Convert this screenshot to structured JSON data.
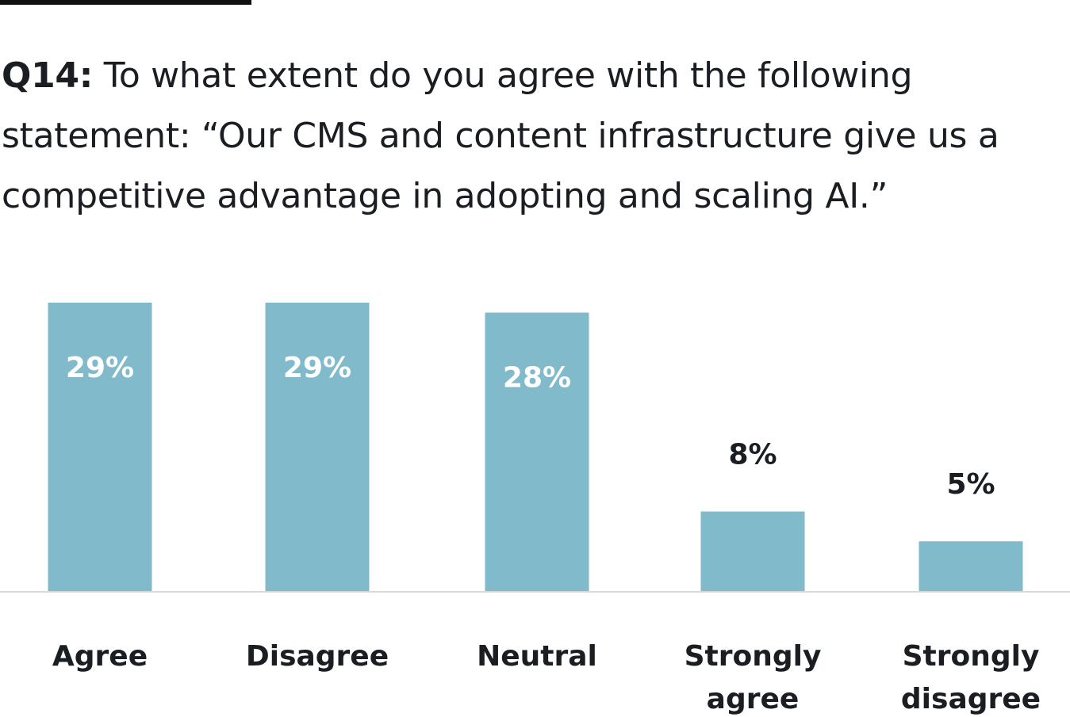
{
  "header": {
    "question_number": "Q14:",
    "question_text": " To what extent do you agree with the following statement: “Our CMS and content infrastructure give us a competitive advantage in adopting and scaling AI.”"
  },
  "colors": {
    "bar": "#81bbcb",
    "inside_label": "#ffffff",
    "outside_label": "#1a1e23",
    "baseline": "#d9d9d9"
  },
  "chart_data": {
    "type": "bar",
    "title": "Q14: To what extent do you agree with the following statement: “Our CMS and content infrastructure give us a competitive advantage in adopting and scaling AI.”",
    "categories": [
      "Agree",
      "Disagree",
      "Neutral",
      "Strongly agree",
      "Strongly disagree"
    ],
    "category_lines": [
      [
        "Agree"
      ],
      [
        "Disagree"
      ],
      [
        "Neutral"
      ],
      [
        "Strongly",
        "agree"
      ],
      [
        "Strongly",
        "disagree"
      ]
    ],
    "values": [
      29,
      29,
      28,
      8,
      5
    ],
    "value_labels": [
      "29%",
      "29%",
      "28%",
      "8%",
      "5%"
    ],
    "xlabel": "",
    "ylabel": "",
    "ylim": [
      0,
      29
    ],
    "grid": false,
    "legend": "none"
  }
}
